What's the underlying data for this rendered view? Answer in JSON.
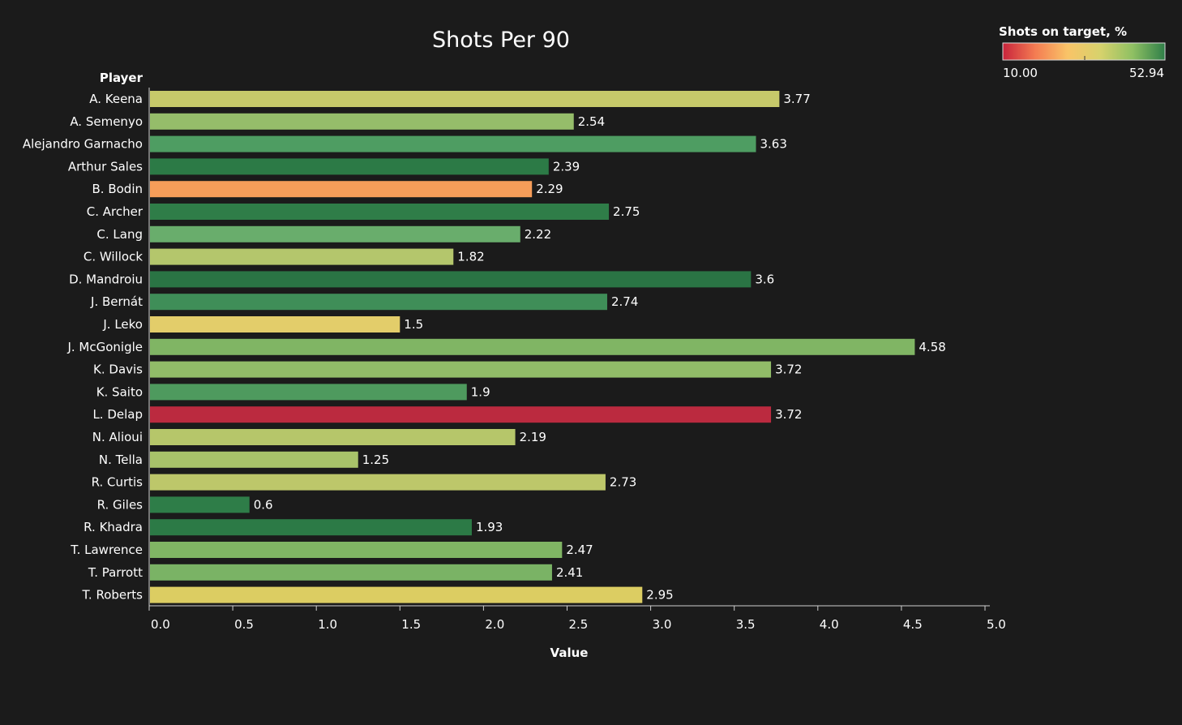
{
  "chart_data": {
    "type": "bar",
    "orientation": "horizontal",
    "title": "Shots Per 90",
    "row_header": "Player",
    "xlabel": "Value",
    "xlim": [
      0,
      5
    ],
    "xticks": [
      "0.0",
      "0.5",
      "1.0",
      "1.5",
      "2.0",
      "2.5",
      "3.0",
      "3.5",
      "4.0",
      "4.5",
      "5.0"
    ],
    "grid": false,
    "categories": [
      "A. Keena",
      "A. Semenyo",
      "Alejandro Garnacho",
      "Arthur Sales",
      "B. Bodin",
      "C. Archer",
      "C. Lang",
      "C. Willock",
      "D. Mandroiu",
      "J. Bernát",
      "J. Leko",
      "J. McGonigle",
      "K. Davis",
      "K. Saito",
      "L. Delap",
      "N. Alioui",
      "N. Tella",
      "R. Curtis",
      "R. Giles",
      "R. Khadra",
      "T. Lawrence",
      "T. Parrott",
      "T. Roberts"
    ],
    "values": [
      3.77,
      2.54,
      3.63,
      2.39,
      2.29,
      2.75,
      2.22,
      1.82,
      3.6,
      2.74,
      1.5,
      4.58,
      3.72,
      1.9,
      3.72,
      2.19,
      1.25,
      2.73,
      0.6,
      1.93,
      2.47,
      2.41,
      2.95
    ],
    "value_labels": [
      "3.77",
      "2.54",
      "3.63",
      "2.39",
      "2.29",
      "2.75",
      "2.22",
      "1.82",
      "3.6",
      "2.74",
      "1.5",
      "4.58",
      "3.72",
      "1.9",
      "3.72",
      "2.19",
      "1.25",
      "2.73",
      "0.6",
      "1.93",
      "2.47",
      "2.41",
      "2.95"
    ],
    "bar_colors": [
      "#c6c96a",
      "#95bd6a",
      "#4e9d62",
      "#2c7a46",
      "#f69d59",
      "#2f7d48",
      "#69ad6c",
      "#b4c66c",
      "#2a7444",
      "#3f8e58",
      "#e3cd6a",
      "#80b564",
      "#91bc68",
      "#4e9a5e",
      "#bb2a3f",
      "#b6c66a",
      "#a8c36a",
      "#bdc76a",
      "#2e7d48",
      "#2c7a46",
      "#80b564",
      "#7ab365",
      "#dccd62"
    ],
    "legend": {
      "title": "Shots on target, %",
      "min_label": "10.00",
      "max_label": "52.94",
      "placement": "top-right",
      "gradient_colors": [
        "#c8243c",
        "#f47c52",
        "#f9c468",
        "#d7d26c",
        "#8fc063",
        "#2f7f49"
      ]
    }
  }
}
